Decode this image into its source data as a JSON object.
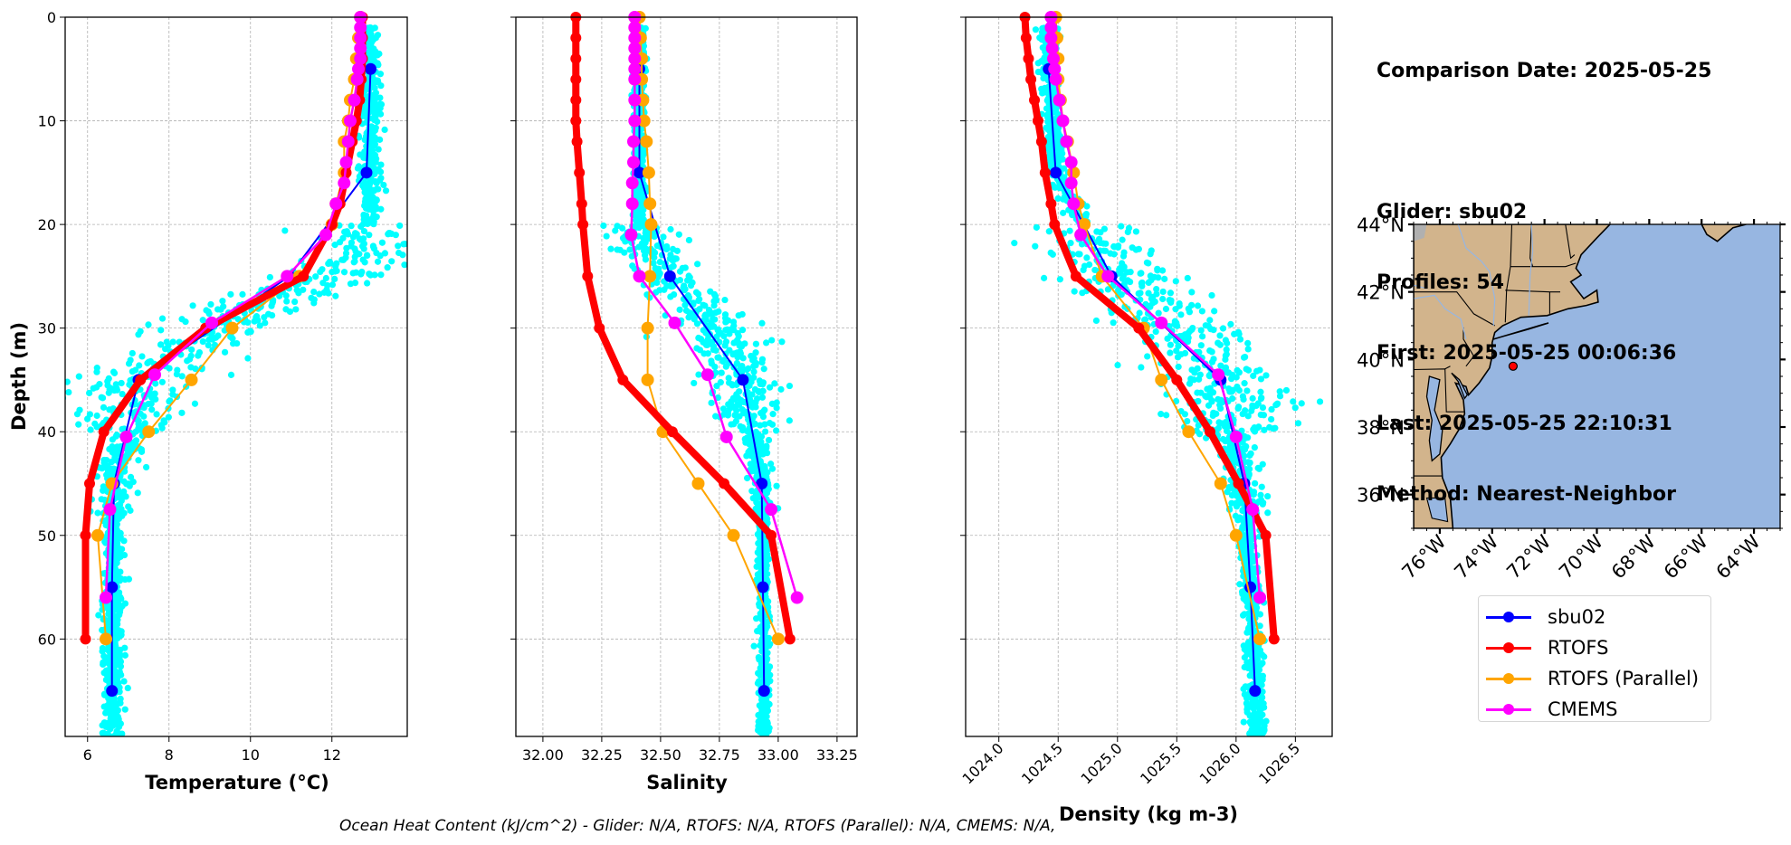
{
  "info": {
    "comparison_date": "Comparison Date: 2025-05-25",
    "glider": "Glider: sbu02",
    "profiles": "Profiles: 54",
    "first": "First: 2025-05-25 00:06:36",
    "last": "Last: 2025-05-25 22:10:31",
    "method": "Method: Nearest-Neighbor"
  },
  "caption": "Ocean Heat Content (kJ/cm^2) - Glider: N/A,  RTOFS: N/A,  RTOFS (Parallel): N/A,  CMEMS: N/A,",
  "legend": [
    {
      "name": "sbu02",
      "color": "#0000ff"
    },
    {
      "name": "RTOFS",
      "color": "#ff0000"
    },
    {
      "name": "RTOFS (Parallel)",
      "color": "#ffa500"
    },
    {
      "name": "CMEMS",
      "color": "#ff00ff"
    }
  ],
  "chart_data": [
    {
      "type": "line",
      "title": "",
      "xlabel": "Temperature (°C)",
      "ylabel": "Depth (m)",
      "xlim": [
        5.45,
        13.85
      ],
      "ylim": [
        69.4,
        0
      ],
      "xticks": [
        6,
        8,
        10,
        12
      ],
      "xtick_labels": [
        "6",
        "8",
        "10",
        "12"
      ],
      "yticks": [
        0,
        10,
        20,
        30,
        40,
        50,
        60
      ],
      "ytick_labels": [
        "0",
        "10",
        "20",
        "30",
        "40",
        "50",
        "60"
      ],
      "grid": true,
      "glider_scatter": {
        "color": "#00ffff",
        "description": "individual glider profile samples (54 profiles)"
      },
      "series": [
        {
          "name": "sbu02",
          "color": "#0000ff",
          "depth": [
            5,
            15,
            25,
            35,
            45,
            55,
            65
          ],
          "values": [
            12.95,
            12.85,
            10.95,
            7.25,
            6.65,
            6.6,
            6.6
          ]
        },
        {
          "name": "RTOFS",
          "color": "#ff0000",
          "depth": [
            0,
            2,
            4,
            6,
            8,
            10,
            12,
            15,
            18,
            20,
            25,
            30,
            35,
            40,
            45,
            50,
            60
          ],
          "values": [
            12.75,
            12.75,
            12.75,
            12.72,
            12.68,
            12.6,
            12.5,
            12.35,
            12.2,
            12.0,
            11.3,
            8.9,
            7.3,
            6.4,
            6.05,
            5.95,
            5.95
          ]
        },
        {
          "name": "RTOFS (Parallel)",
          "color": "#ffa500",
          "depth": [
            0,
            2,
            4,
            6,
            8,
            10,
            12,
            15,
            18,
            20,
            25,
            30,
            35,
            40,
            45,
            50,
            60
          ],
          "values": [
            12.7,
            12.65,
            12.6,
            12.55,
            12.45,
            12.4,
            12.3,
            12.3,
            12.1,
            12.0,
            11.2,
            9.55,
            8.55,
            7.5,
            6.6,
            6.25,
            6.45
          ]
        },
        {
          "name": "CMEMS",
          "color": "#ff00ff",
          "depth": [
            0,
            1,
            2,
            3,
            4,
            5,
            6,
            8,
            10,
            12,
            14,
            16,
            18,
            21,
            25,
            29.5,
            34.5,
            40.5,
            47.5,
            56
          ],
          "values": [
            12.7,
            12.7,
            12.7,
            12.7,
            12.7,
            12.65,
            12.62,
            12.55,
            12.45,
            12.4,
            12.35,
            12.3,
            12.1,
            11.85,
            10.9,
            9.05,
            7.65,
            6.95,
            6.55,
            6.45
          ]
        }
      ]
    },
    {
      "type": "line",
      "title": "",
      "xlabel": "Salinity",
      "ylabel": "",
      "xlim": [
        31.885,
        33.335
      ],
      "ylim": [
        69.4,
        0
      ],
      "xticks": [
        32.0,
        32.25,
        32.5,
        32.75,
        33.0,
        33.25
      ],
      "xtick_labels": [
        "32.00",
        "32.25",
        "32.50",
        "32.75",
        "33.00",
        "33.25"
      ],
      "yticks": [
        0,
        10,
        20,
        30,
        40,
        50,
        60
      ],
      "grid": true,
      "glider_scatter": {
        "color": "#00ffff",
        "description": "individual glider profile samples (54 profiles)"
      },
      "series": [
        {
          "name": "sbu02",
          "color": "#0000ff",
          "depth": [
            5,
            15,
            25,
            35,
            45,
            55,
            65
          ],
          "values": [
            32.41,
            32.41,
            32.54,
            32.85,
            32.93,
            32.935,
            32.94
          ]
        },
        {
          "name": "RTOFS",
          "color": "#ff0000",
          "depth": [
            0,
            2,
            4,
            6,
            8,
            10,
            12,
            15,
            18,
            20,
            25,
            30,
            35,
            40,
            45,
            50,
            60
          ],
          "values": [
            32.14,
            32.14,
            32.14,
            32.14,
            32.14,
            32.14,
            32.145,
            32.155,
            32.165,
            32.17,
            32.19,
            32.24,
            32.34,
            32.55,
            32.77,
            32.97,
            33.05
          ]
        },
        {
          "name": "RTOFS (Parallel)",
          "color": "#ffa500",
          "depth": [
            0,
            2,
            4,
            6,
            8,
            10,
            12,
            15,
            18,
            20,
            25,
            30,
            35,
            40,
            45,
            50,
            60
          ],
          "values": [
            32.41,
            32.415,
            32.42,
            32.42,
            32.425,
            32.43,
            32.44,
            32.45,
            32.455,
            32.46,
            32.455,
            32.445,
            32.445,
            32.51,
            32.66,
            32.81,
            33.0
          ]
        },
        {
          "name": "CMEMS",
          "color": "#ff00ff",
          "depth": [
            0,
            1,
            2,
            3,
            4,
            5,
            6,
            8,
            10,
            12,
            14,
            16,
            18,
            21,
            25,
            29.5,
            34.5,
            40.5,
            47.5,
            56
          ],
          "values": [
            32.39,
            32.39,
            32.39,
            32.39,
            32.39,
            32.39,
            32.39,
            32.39,
            32.39,
            32.385,
            32.385,
            32.38,
            32.38,
            32.375,
            32.41,
            32.56,
            32.7,
            32.78,
            32.97,
            33.08
          ]
        }
      ]
    },
    {
      "type": "line",
      "title": "",
      "xlabel": "Density (kg m-3)",
      "ylabel": "",
      "xlim": [
        1023.72,
        1026.81
      ],
      "ylim": [
        69.4,
        0
      ],
      "xticks": [
        1024.0,
        1024.5,
        1025.0,
        1025.5,
        1026.0,
        1026.5
      ],
      "xtick_labels": [
        "1024.0",
        "1024.5",
        "1025.0",
        "1025.5",
        "1026.0",
        "1026.5"
      ],
      "yticks": [
        0,
        10,
        20,
        30,
        40,
        50,
        60
      ],
      "grid": true,
      "glider_scatter": {
        "color": "#00ffff",
        "description": "individual glider profile samples (54 profiles)"
      },
      "series": [
        {
          "name": "sbu02",
          "color": "#0000ff",
          "depth": [
            5,
            15,
            25,
            35,
            45,
            55,
            65
          ],
          "values": [
            1024.42,
            1024.48,
            1024.95,
            1025.87,
            1026.07,
            1026.12,
            1026.16
          ]
        },
        {
          "name": "RTOFS",
          "color": "#ff0000",
          "depth": [
            0,
            2,
            4,
            6,
            8,
            10,
            12,
            15,
            18,
            20,
            25,
            30,
            35,
            40,
            45,
            50,
            60
          ],
          "values": [
            1024.22,
            1024.23,
            1024.25,
            1024.27,
            1024.3,
            1024.33,
            1024.36,
            1024.39,
            1024.44,
            1024.47,
            1024.65,
            1025.18,
            1025.5,
            1025.78,
            1026.02,
            1026.25,
            1026.32
          ]
        },
        {
          "name": "RTOFS (Parallel)",
          "color": "#ffa500",
          "depth": [
            0,
            2,
            4,
            6,
            8,
            10,
            12,
            15,
            18,
            20,
            25,
            30,
            35,
            40,
            45,
            50,
            60
          ],
          "values": [
            1024.48,
            1024.49,
            1024.5,
            1024.5,
            1024.52,
            1024.54,
            1024.58,
            1024.63,
            1024.67,
            1024.72,
            1024.87,
            1025.22,
            1025.37,
            1025.6,
            1025.87,
            1026.0,
            1026.2
          ]
        },
        {
          "name": "CMEMS",
          "color": "#ff00ff",
          "depth": [
            0,
            1,
            2,
            3,
            4,
            5,
            6,
            8,
            10,
            12,
            14,
            16,
            18,
            21,
            25,
            29.5,
            34.5,
            40.5,
            47.5,
            56
          ],
          "values": [
            1024.44,
            1024.44,
            1024.44,
            1024.45,
            1024.46,
            1024.47,
            1024.48,
            1024.51,
            1024.54,
            1024.57,
            1024.61,
            1024.61,
            1024.63,
            1024.69,
            1024.92,
            1025.37,
            1025.85,
            1026.0,
            1026.14,
            1026.2
          ]
        }
      ]
    },
    {
      "type": "map",
      "title": "",
      "lon_range": [
        -77.0,
        -63.0
      ],
      "lat_range": [
        35.0,
        44.0
      ],
      "xticks": [
        -76,
        -74,
        -72,
        -70,
        -68,
        -66,
        -64
      ],
      "xtick_labels": [
        "76°W",
        "74°W",
        "72°W",
        "70°W",
        "68°W",
        "66°W",
        "64°W"
      ],
      "yticks": [
        36,
        38,
        40,
        42,
        44
      ],
      "ytick_labels": [
        "36°N",
        "38°N",
        "40°N",
        "42°N",
        "44°N"
      ],
      "land_color": "#d2b48c",
      "ocean_color": "#97b6e1",
      "marker": {
        "label": "glider location",
        "lon": -73.2,
        "lat": 39.8,
        "color": "#ff0000"
      }
    }
  ]
}
